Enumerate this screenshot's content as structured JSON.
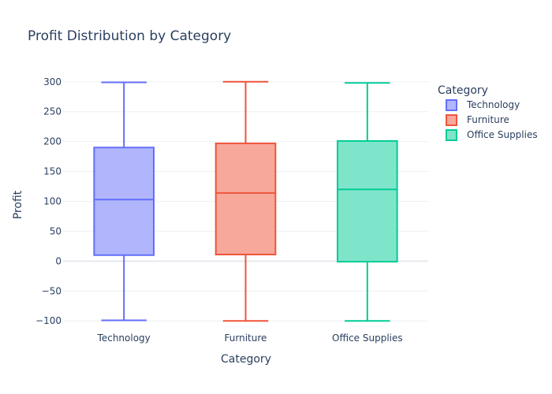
{
  "chart_data": {
    "type": "box",
    "title": "Profit Distribution by Category",
    "xlabel": "Category",
    "ylabel": "Profit",
    "ylim": [
      -105,
      305
    ],
    "yticks": [
      -100,
      -50,
      0,
      50,
      100,
      150,
      200,
      250,
      300
    ],
    "ytick_labels": [
      "−100",
      "−50",
      "0",
      "50",
      "100",
      "150",
      "200",
      "250",
      "300"
    ],
    "grid": true,
    "legend_title": "Category",
    "legend_position": "top-right",
    "series": [
      {
        "name": "Technology",
        "color": "#636efa",
        "fill": "#b1b6fc",
        "min": -99,
        "q1": 10,
        "median": 103,
        "q3": 190,
        "max": 299
      },
      {
        "name": "Furniture",
        "color": "#ef553b",
        "fill": "#f7a89b",
        "min": -100,
        "q1": 11,
        "median": 114,
        "q3": 197,
        "max": 300
      },
      {
        "name": "Office Supplies",
        "color": "#00cc96",
        "fill": "#7fe5ca",
        "min": -100,
        "q1": -1,
        "median": 120,
        "q3": 201,
        "max": 298
      }
    ]
  }
}
